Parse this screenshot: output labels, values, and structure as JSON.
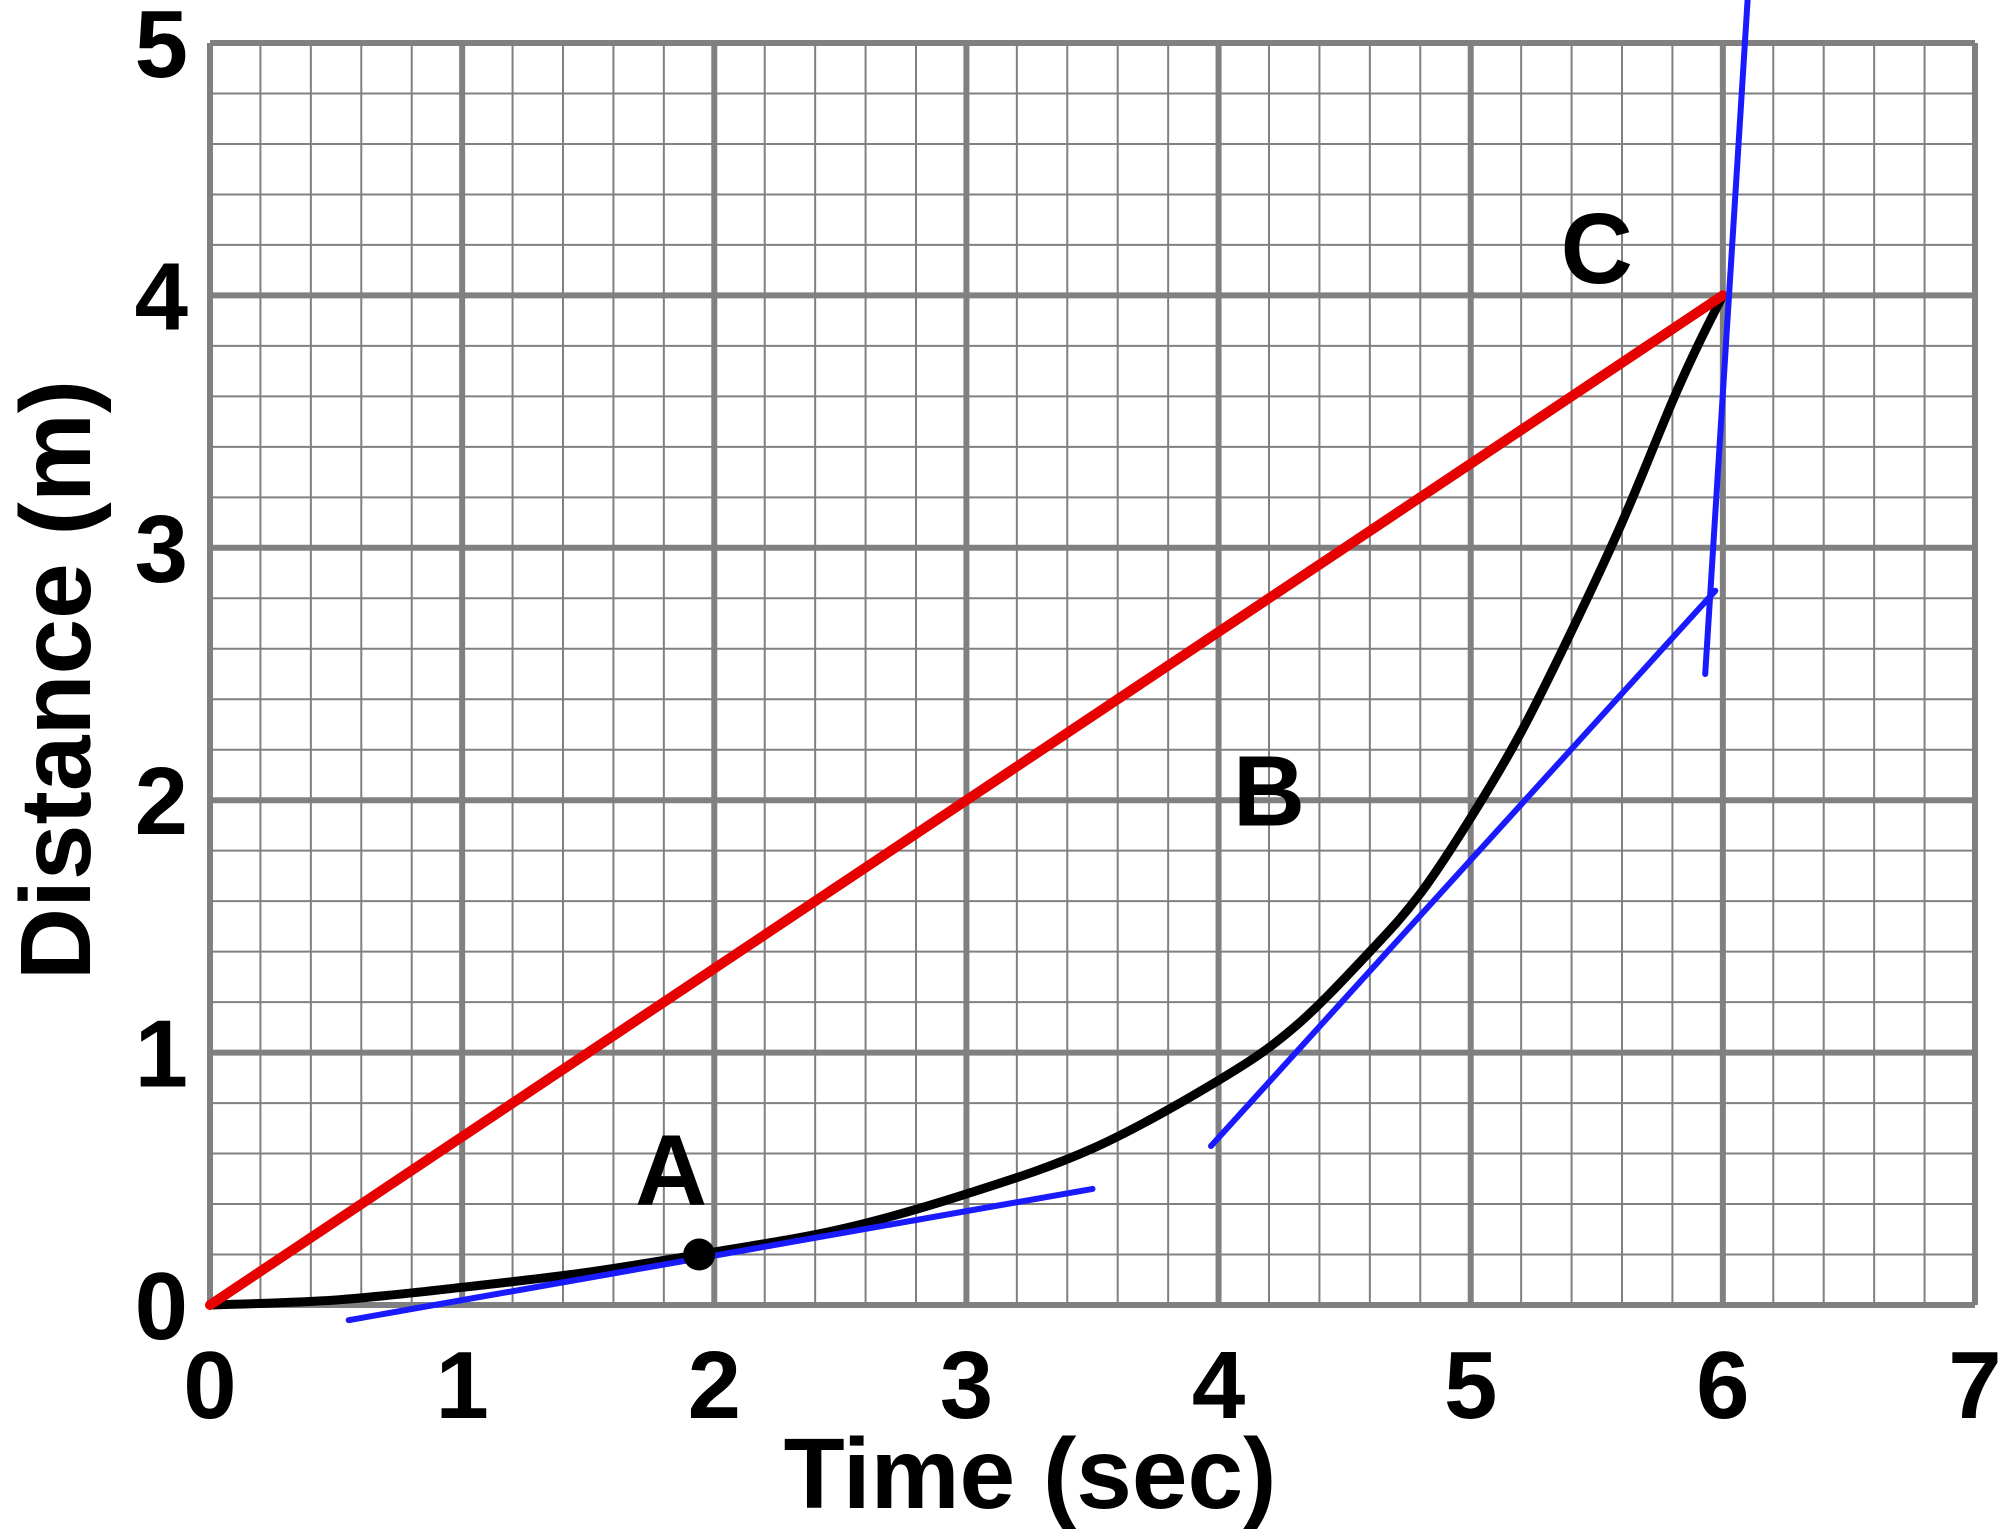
{
  "chart_data": {
    "type": "line",
    "xlabel": "Time (sec)",
    "ylabel": "Distance (m)",
    "xlim": [
      0,
      7
    ],
    "ylim": [
      0,
      5
    ],
    "xticks": [
      "0",
      "1",
      "2",
      "3",
      "4",
      "5",
      "6",
      "7"
    ],
    "yticks": [
      "0",
      "1",
      "2",
      "3",
      "4",
      "5"
    ],
    "grid": {
      "major": 1,
      "minor": 0.2
    },
    "colors": {
      "curve": "#000000",
      "secant": "#e60000",
      "tangent": "#1a1aff",
      "grid": "#808080"
    },
    "series": [
      {
        "kind": "curve",
        "x": [
          0,
          0.5,
          1,
          1.5,
          2,
          2.5,
          3,
          3.5,
          4,
          4.3,
          4.6,
          4.8,
          5,
          5.2,
          5.4,
          5.6,
          5.8,
          5.9,
          6
        ],
        "y": [
          0,
          0.02,
          0.07,
          0.13,
          0.21,
          0.3,
          0.44,
          0.62,
          0.89,
          1.1,
          1.4,
          1.63,
          1.93,
          2.27,
          2.67,
          3.1,
          3.58,
          3.8,
          4
        ]
      },
      {
        "kind": "secant",
        "x": [
          0,
          6
        ],
        "y": [
          0,
          4
        ]
      },
      {
        "kind": "tangent",
        "x": [
          0.55,
          3.5
        ],
        "y": [
          -0.06,
          0.46
        ]
      },
      {
        "kind": "tangent",
        "x": [
          3.97,
          5.97
        ],
        "y": [
          0.63,
          2.83
        ]
      },
      {
        "kind": "tangent",
        "x": [
          5.93,
          6.1
        ],
        "y": [
          2.5,
          5.2
        ]
      }
    ],
    "points": [
      {
        "label": "A",
        "x": 1.94,
        "y": 0.2,
        "marker": true
      },
      {
        "label": "B",
        "x": 4.2,
        "y": 1.9,
        "marker": false
      },
      {
        "label": "C",
        "x": 5.5,
        "y": 4.05,
        "marker": false
      }
    ]
  }
}
